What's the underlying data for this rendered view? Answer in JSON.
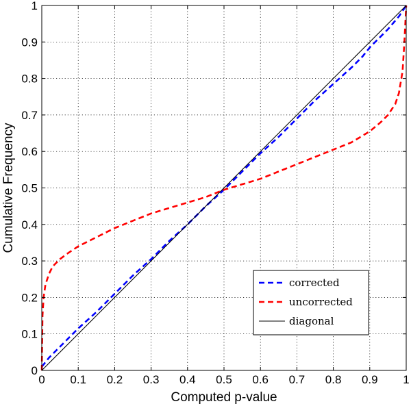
{
  "chart_data": {
    "type": "line",
    "title": "",
    "xlabel": "Computed p-value",
    "ylabel": "Cumulative Frequency",
    "xlim": [
      0,
      1
    ],
    "ylim": [
      0,
      1
    ],
    "grid": true,
    "legend_position": "bottom-right",
    "x_ticks": [
      "0",
      "0.1",
      "0.2",
      "0.3",
      "0.4",
      "0.5",
      "0.6",
      "0.7",
      "0.8",
      "0.9",
      "1"
    ],
    "y_ticks": [
      "0",
      "0.1",
      "0.2",
      "0.3",
      "0.4",
      "0.5",
      "0.6",
      "0.7",
      "0.8",
      "0.9",
      "1"
    ],
    "series": [
      {
        "name": "corrected",
        "color": "#0000ff",
        "style": "dashed",
        "x": [
          0,
          0.02,
          0.05,
          0.1,
          0.15,
          0.2,
          0.25,
          0.3,
          0.35,
          0.4,
          0.45,
          0.5,
          0.55,
          0.6,
          0.65,
          0.7,
          0.75,
          0.8,
          0.85,
          0.88,
          0.9,
          0.95,
          0.98,
          1.0
        ],
        "y": [
          0.01,
          0.035,
          0.065,
          0.115,
          0.16,
          0.21,
          0.26,
          0.305,
          0.355,
          0.4,
          0.45,
          0.495,
          0.545,
          0.595,
          0.64,
          0.69,
          0.74,
          0.785,
          0.83,
          0.86,
          0.885,
          0.935,
          0.97,
          1.0
        ]
      },
      {
        "name": "uncorrected",
        "color": "#ff0000",
        "style": "dashed",
        "x": [
          0,
          0.002,
          0.005,
          0.01,
          0.02,
          0.03,
          0.05,
          0.07,
          0.1,
          0.15,
          0.2,
          0.25,
          0.3,
          0.35,
          0.4,
          0.45,
          0.5,
          0.55,
          0.6,
          0.65,
          0.7,
          0.75,
          0.8,
          0.85,
          0.9,
          0.93,
          0.95,
          0.97,
          0.98,
          0.99,
          0.995,
          1.0
        ],
        "y": [
          0,
          0.15,
          0.2,
          0.235,
          0.265,
          0.285,
          0.305,
          0.32,
          0.34,
          0.365,
          0.39,
          0.41,
          0.43,
          0.445,
          0.46,
          0.475,
          0.495,
          0.51,
          0.525,
          0.545,
          0.565,
          0.585,
          0.605,
          0.625,
          0.655,
          0.68,
          0.7,
          0.73,
          0.76,
          0.82,
          0.9,
          1.0
        ]
      },
      {
        "name": "diagonal",
        "color": "#000000",
        "style": "solid",
        "x": [
          0,
          1
        ],
        "y": [
          0,
          1
        ]
      }
    ]
  }
}
